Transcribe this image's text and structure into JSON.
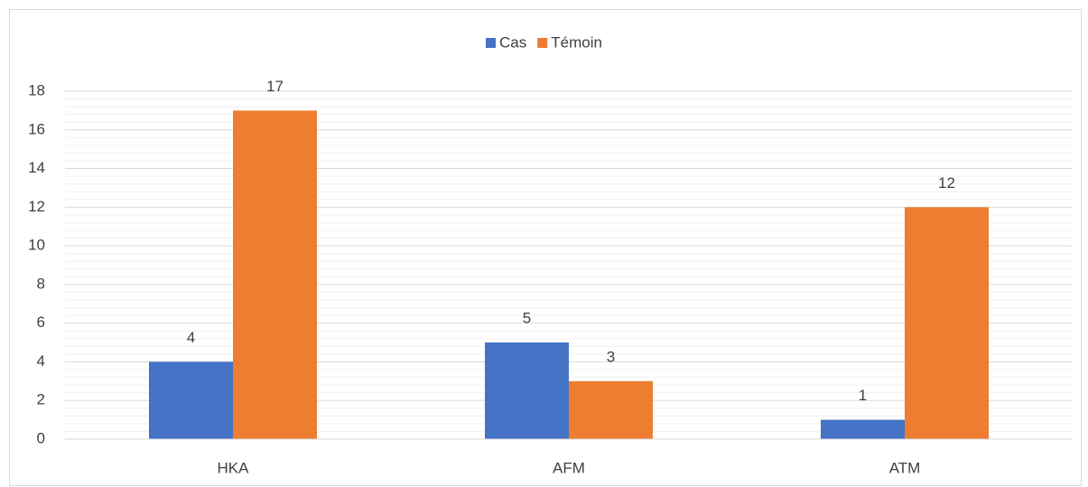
{
  "chart_data": {
    "type": "bar",
    "categories": [
      "HKA",
      "AFM",
      "ATM"
    ],
    "series": [
      {
        "name": "Cas",
        "color": "#4472c4",
        "values": [
          4,
          5,
          1
        ]
      },
      {
        "name": "Témoin",
        "color": "#ed7d31",
        "values": [
          17,
          3,
          12
        ]
      }
    ],
    "ylim": [
      0,
      18
    ],
    "yticks": [
      0,
      2,
      4,
      6,
      8,
      10,
      12,
      14,
      16,
      18
    ],
    "grid": true,
    "minor_grid": true,
    "legend": "top",
    "data_labels": true
  }
}
